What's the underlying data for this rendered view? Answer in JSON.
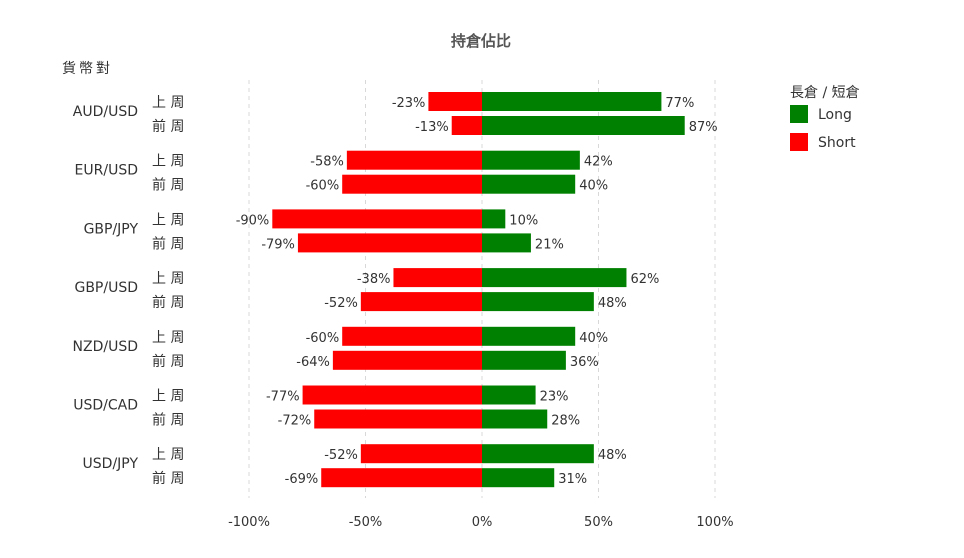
{
  "chart_data": {
    "type": "bar",
    "orientation": "horizontal-diverging",
    "title": "持倉佔比",
    "ylabel": "貨幣對",
    "xlim": [
      -100,
      100
    ],
    "x_ticks": [
      -100,
      -50,
      0,
      50,
      100
    ],
    "x_tick_labels": [
      "-100%",
      "-50%",
      "0%",
      "50%",
      "100%"
    ],
    "grid": true,
    "legend": {
      "title": "長倉 / 短倉",
      "placement": "top-right",
      "items": [
        {
          "name": "Long",
          "color": "#008000"
        },
        {
          "name": "Short",
          "color": "#ff0000"
        }
      ]
    },
    "periods": [
      "上 周",
      "前 周"
    ],
    "categories": [
      "AUD/USD",
      "EUR/USD",
      "GBP/JPY",
      "GBP/USD",
      "NZD/USD",
      "USD/CAD",
      "USD/JPY"
    ],
    "series": [
      {
        "name": "Long",
        "color": "#008000",
        "values": [
          [
            77,
            87
          ],
          [
            42,
            40
          ],
          [
            10,
            21
          ],
          [
            62,
            48
          ],
          [
            40,
            36
          ],
          [
            23,
            28
          ],
          [
            48,
            31
          ]
        ]
      },
      {
        "name": "Short",
        "color": "#ff0000",
        "values": [
          [
            -23,
            -13
          ],
          [
            -58,
            -60
          ],
          [
            -90,
            -79
          ],
          [
            -38,
            -52
          ],
          [
            -60,
            -64
          ],
          [
            -77,
            -72
          ],
          [
            -52,
            -69
          ]
        ]
      }
    ]
  }
}
